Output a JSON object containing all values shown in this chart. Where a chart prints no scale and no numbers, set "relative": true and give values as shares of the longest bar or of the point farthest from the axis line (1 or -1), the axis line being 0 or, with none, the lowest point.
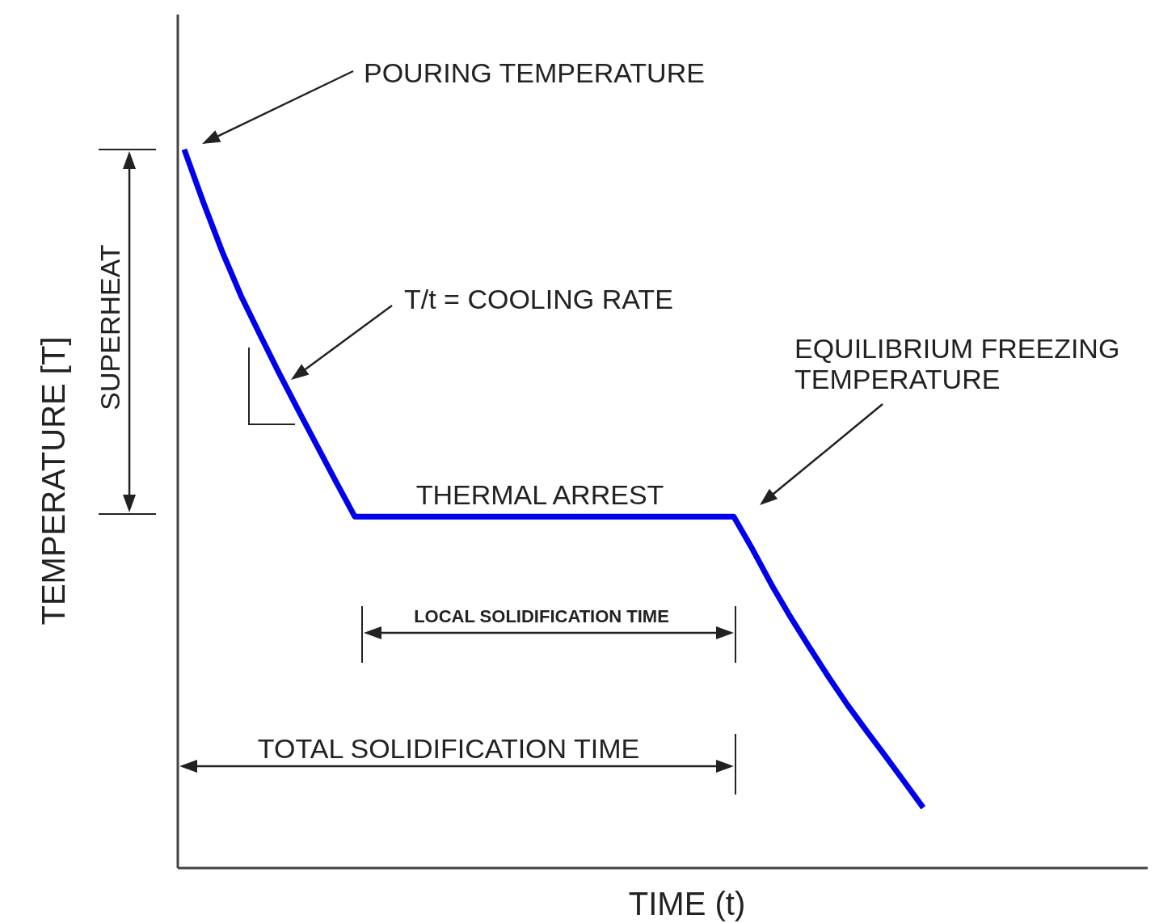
{
  "chart_data": {
    "type": "line",
    "relative": true,
    "xlabel": "TIME (t)",
    "ylabel": "TEMPERATURE [T]",
    "categories": [
      null,
      null,
      null,
      null,
      null,
      null,
      null,
      null,
      null,
      null,
      null,
      null,
      null,
      null,
      null,
      null,
      null,
      null,
      null,
      null,
      null,
      null,
      null,
      null,
      null,
      null,
      null,
      null,
      null,
      null,
      null,
      null,
      null,
      null,
      null,
      null,
      null,
      null,
      null,
      null
    ],
    "marker": "none",
    "series": [
      {
        "color": "#0000ee",
        "values": [
          1,
          0.927,
          0.858,
          0.796,
          0.742,
          0.689,
          0.638,
          0.588,
          0.538,
          0.489,
          0.489,
          0.489,
          0.489,
          0.489,
          0.489,
          0.489,
          0.489,
          0.489,
          0.489,
          0.489,
          0.489,
          0.489,
          0.489,
          0.489,
          0.489,
          0.489,
          0.489,
          0.489,
          0.489,
          0.489,
          0.443,
          0.394,
          0.349,
          0.307,
          0.266,
          0.227,
          0.191,
          0.156,
          0.12,
          0.084
        ]
      }
    ],
    "annotations": [
      "POURING TEMPERATURE",
      "T/t = COOLING RATE",
      "THERMAL ARREST",
      "EQUILIBRIUM FREEZING TEMPERATURE",
      "SUPERHEAT",
      "LOCAL SOLIDIFICATION TIME",
      "TOTAL SOLIDIFICATION TIME"
    ]
  }
}
